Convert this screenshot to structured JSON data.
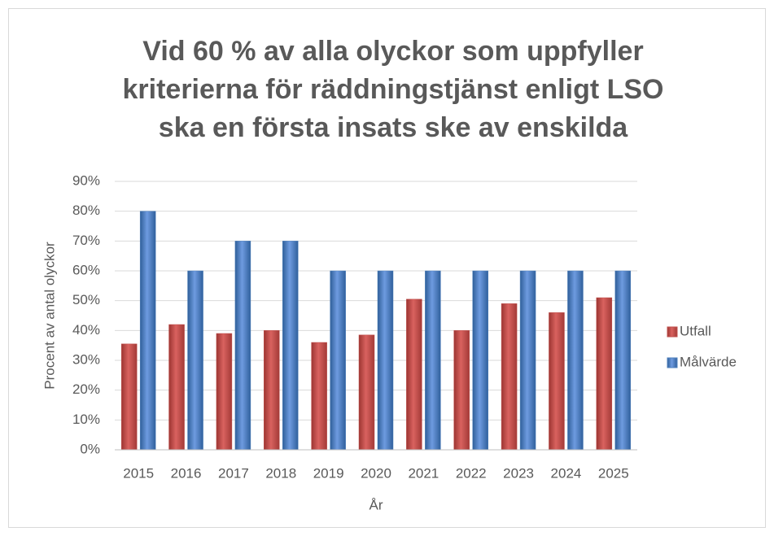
{
  "chart_data": {
    "type": "bar",
    "title": "Vid 60 % av alla olyckor som uppfyller kriterierna för räddningstjänst enligt LSO ska en första insats ske av enskilda",
    "x_label": "År",
    "y_label": "Procent av antal olyckor",
    "categories": [
      "2015",
      "2016",
      "2017",
      "2018",
      "2019",
      "2020",
      "2021",
      "2022",
      "2023",
      "2024",
      "2025"
    ],
    "series": [
      {
        "name": "Utfall",
        "color": "#c0504d",
        "values": [
          35.5,
          42,
          39,
          40,
          36,
          38.5,
          50.5,
          40,
          49,
          46,
          51
        ]
      },
      {
        "name": "Målvärde",
        "color": "#4f81bd",
        "values": [
          80,
          60,
          70,
          70,
          60,
          60,
          60,
          60,
          60,
          60,
          60
        ]
      }
    ],
    "ylim": [
      0,
      90
    ],
    "yticks": [
      {
        "value": 0,
        "label": "0%"
      },
      {
        "value": 10,
        "label": "10%"
      },
      {
        "value": 20,
        "label": "20%"
      },
      {
        "value": 30,
        "label": "30%"
      },
      {
        "value": 40,
        "label": "40%"
      },
      {
        "value": 50,
        "label": "50%"
      },
      {
        "value": 60,
        "label": "60%"
      },
      {
        "value": 70,
        "label": "70%"
      },
      {
        "value": 80,
        "label": "80%"
      },
      {
        "value": 90,
        "label": "90%"
      }
    ],
    "grid": true,
    "legend": "right"
  }
}
